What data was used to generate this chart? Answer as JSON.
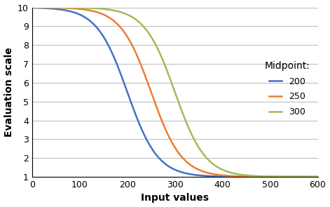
{
  "title": "",
  "xlabel": "Input values",
  "ylabel": "Evaluation scale",
  "xlim": [
    0,
    600
  ],
  "ylim": [
    1,
    10
  ],
  "xticks": [
    0,
    100,
    200,
    300,
    400,
    500,
    600
  ],
  "yticks": [
    1,
    2,
    3,
    4,
    5,
    6,
    7,
    8,
    9,
    10
  ],
  "curves": [
    {
      "midpoint": 200,
      "spread": 32,
      "color": "#4472C4",
      "label": "200"
    },
    {
      "midpoint": 250,
      "spread": 32,
      "color": "#ED7D31",
      "label": "250"
    },
    {
      "midpoint": 300,
      "spread": 32,
      "color": "#9FBC58",
      "label": "300"
    }
  ],
  "ymin": 1,
  "ymax": 10,
  "legend_title": "Midpoint:",
  "background_color": "#FFFFFF",
  "grid_color": "#C0C0C0"
}
